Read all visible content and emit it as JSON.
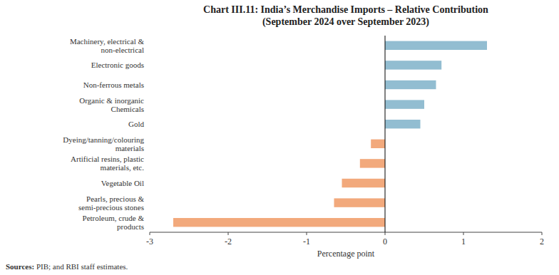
{
  "chart_data": {
    "type": "bar",
    "orientation": "horizontal",
    "title": "Chart III.11: India’s Merchandise Imports – Relative Contribution\n(September 2024 over September 2023)",
    "categories": [
      "Petroleum, crude &\nproducts",
      "Pearls, precious &\nsemi-precious stones",
      "Vegetable Oil",
      "Artificial resins, plastic\nmaterials, etc.",
      "Dyeing/tanning/colouring\nmaterials",
      "Gold",
      "Organic & inorganic\nChemicals",
      "Non-ferrous metals",
      "Electronic goods",
      "Machinery, electrical &\nnon-electrical"
    ],
    "values": [
      -2.7,
      -0.65,
      -0.55,
      -0.32,
      -0.18,
      0.45,
      0.5,
      0.65,
      0.72,
      1.3
    ],
    "colors": [
      "#F2A97C",
      "#F2A97C",
      "#F2A97C",
      "#F2A97C",
      "#F2A97C",
      "#92BDD1",
      "#92BDD1",
      "#92BDD1",
      "#92BDD1",
      "#92BDD1"
    ],
    "xlabel": "Percentage point",
    "xlim": [
      -3,
      2
    ],
    "xticks": [
      -3,
      -2,
      -1,
      0,
      1,
      2
    ],
    "grid": false,
    "annotations": [
      "Sources:",
      " PIB; and RBI staff estimates."
    ]
  }
}
